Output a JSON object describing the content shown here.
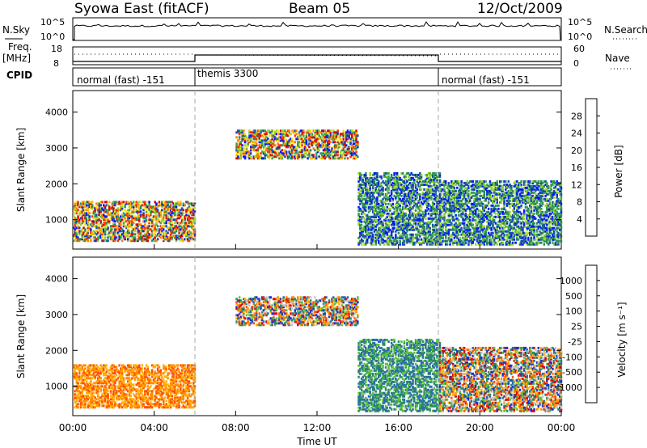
{
  "header": {
    "station": "Syowa East (fitACF)",
    "beam": "Beam 05",
    "date": "12/Oct/2009"
  },
  "strip_panels": {
    "nsky": {
      "label": "N.Sky",
      "right_label": "N.Search",
      "top_tick": "10^5",
      "bottom_tick": "10^0"
    },
    "freq": {
      "label_line1": "Freq.",
      "label_line2": "[MHz]",
      "left_top": "18",
      "left_bottom": "8",
      "right_top": "60",
      "right_bottom": "0",
      "right_label": "Nave"
    },
    "cpid": {
      "label": "CPID",
      "segments": [
        {
          "name": "normal (fast) -151",
          "start_hour": 0,
          "end_hour": 6
        },
        {
          "name": "themis 3300",
          "start_hour": 6,
          "end_hour": 18
        },
        {
          "name": "normal (fast) -151",
          "start_hour": 18,
          "end_hour": 24
        }
      ]
    }
  },
  "chart_data": [
    {
      "type": "heatmap",
      "title": "",
      "xlabel": "Time UT",
      "ylabel": "Slant Range [km]",
      "xlim": [
        0,
        24
      ],
      "ylim": [
        180,
        4600
      ],
      "yticks": [
        "1000",
        "2000",
        "3000",
        "4000"
      ],
      "colorbar": {
        "label": "Power [dB]",
        "ticks": [
          "4",
          "8",
          "12",
          "16",
          "20",
          "24",
          "28"
        ],
        "colors": [
          "#0018ff",
          "#1a4ab4",
          "#2a8a5a",
          "#3aa84c",
          "#9ad22a",
          "#f0e81a",
          "#ffb400",
          "#ff7a00",
          "#ff3000",
          "#e00000"
        ]
      },
      "echo_regions": [
        {
          "t0": 0.0,
          "t1": 6.0,
          "r0": 400,
          "r1": 1500,
          "level": "mixed-high"
        },
        {
          "t0": 8.0,
          "t1": 14.0,
          "r0": 2700,
          "r1": 3500,
          "level": "mixed"
        },
        {
          "t0": 14.0,
          "t1": 18.0,
          "r0": 300,
          "r1": 2300,
          "level": "mixed-low"
        },
        {
          "t0": 18.0,
          "t1": 24.0,
          "r0": 300,
          "r1": 2100,
          "level": "mixed-low"
        }
      ]
    },
    {
      "type": "heatmap",
      "title": "",
      "xlabel": "Time UT",
      "ylabel": "Slant Range [km]",
      "xlim": [
        0,
        24
      ],
      "ylim": [
        180,
        4600
      ],
      "yticks": [
        "1000",
        "2000",
        "3000",
        "4000"
      ],
      "xticks": [
        "00:00",
        "04:00",
        "08:00",
        "12:00",
        "16:00",
        "20:00",
        "00:00"
      ],
      "colorbar": {
        "label": "Velocity [m s⁻¹]",
        "ticks": [
          "1000",
          "500",
          "100",
          "25",
          "-25",
          "-100",
          "-500",
          "-1000"
        ],
        "colors": [
          "#1a30c8",
          "#2a6ab0",
          "#2a8a6a",
          "#5cc040",
          "#c8c8c8",
          "#ffb000",
          "#ff8a00",
          "#ff5000",
          "#e00000"
        ]
      },
      "echo_regions": [
        {
          "t0": 0.0,
          "t1": 6.0,
          "r0": 400,
          "r1": 1600,
          "level": "negative"
        },
        {
          "t0": 8.0,
          "t1": 14.0,
          "r0": 2700,
          "r1": 3500,
          "level": "mixed"
        },
        {
          "t0": 14.0,
          "t1": 18.0,
          "r0": 300,
          "r1": 2300,
          "level": "positive"
        },
        {
          "t0": 18.0,
          "t1": 24.0,
          "r0": 300,
          "r1": 2100,
          "level": "mixed"
        }
      ]
    }
  ]
}
